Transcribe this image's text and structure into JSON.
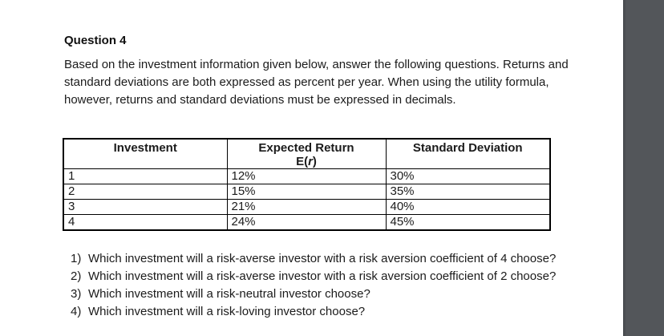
{
  "colors": {
    "right_strip": "#53565a",
    "page_background": "#ffffff",
    "text": "#1b1b1b"
  },
  "document": {
    "title": "Question 4",
    "intro_lines": [
      "Based on the investment information given below, answer the following questions. Returns and",
      "standard deviations are both expressed as percent per year. When using the utility formula,",
      "however, returns and standard deviations must be expressed in decimals."
    ],
    "table": {
      "headers": {
        "investment": "Investment",
        "expected_return": "Expected Return",
        "expected_return_sub_prefix": "E(",
        "expected_return_sub_var": "r",
        "expected_return_sub_suffix": ")",
        "standard_deviation": "Standard Deviation"
      },
      "rows": [
        {
          "investment": "1",
          "expected_return": "12%",
          "standard_deviation": "30%"
        },
        {
          "investment": "2",
          "expected_return": "15%",
          "standard_deviation": "35%"
        },
        {
          "investment": "3",
          "expected_return": "21%",
          "standard_deviation": "40%"
        },
        {
          "investment": "4",
          "expected_return": "24%",
          "standard_deviation": "45%"
        }
      ]
    },
    "questions": [
      {
        "num": "1)",
        "text": "Which investment will a risk-averse investor with a risk aversion coefficient of 4 choose?"
      },
      {
        "num": "2)",
        "text": "Which investment will a risk-averse investor with a risk aversion coefficient of 2 choose?"
      },
      {
        "num": "3)",
        "text": "Which investment will a risk-neutral investor choose?"
      },
      {
        "num": "4)",
        "text": "Which investment will a risk-loving investor choose?"
      }
    ]
  }
}
